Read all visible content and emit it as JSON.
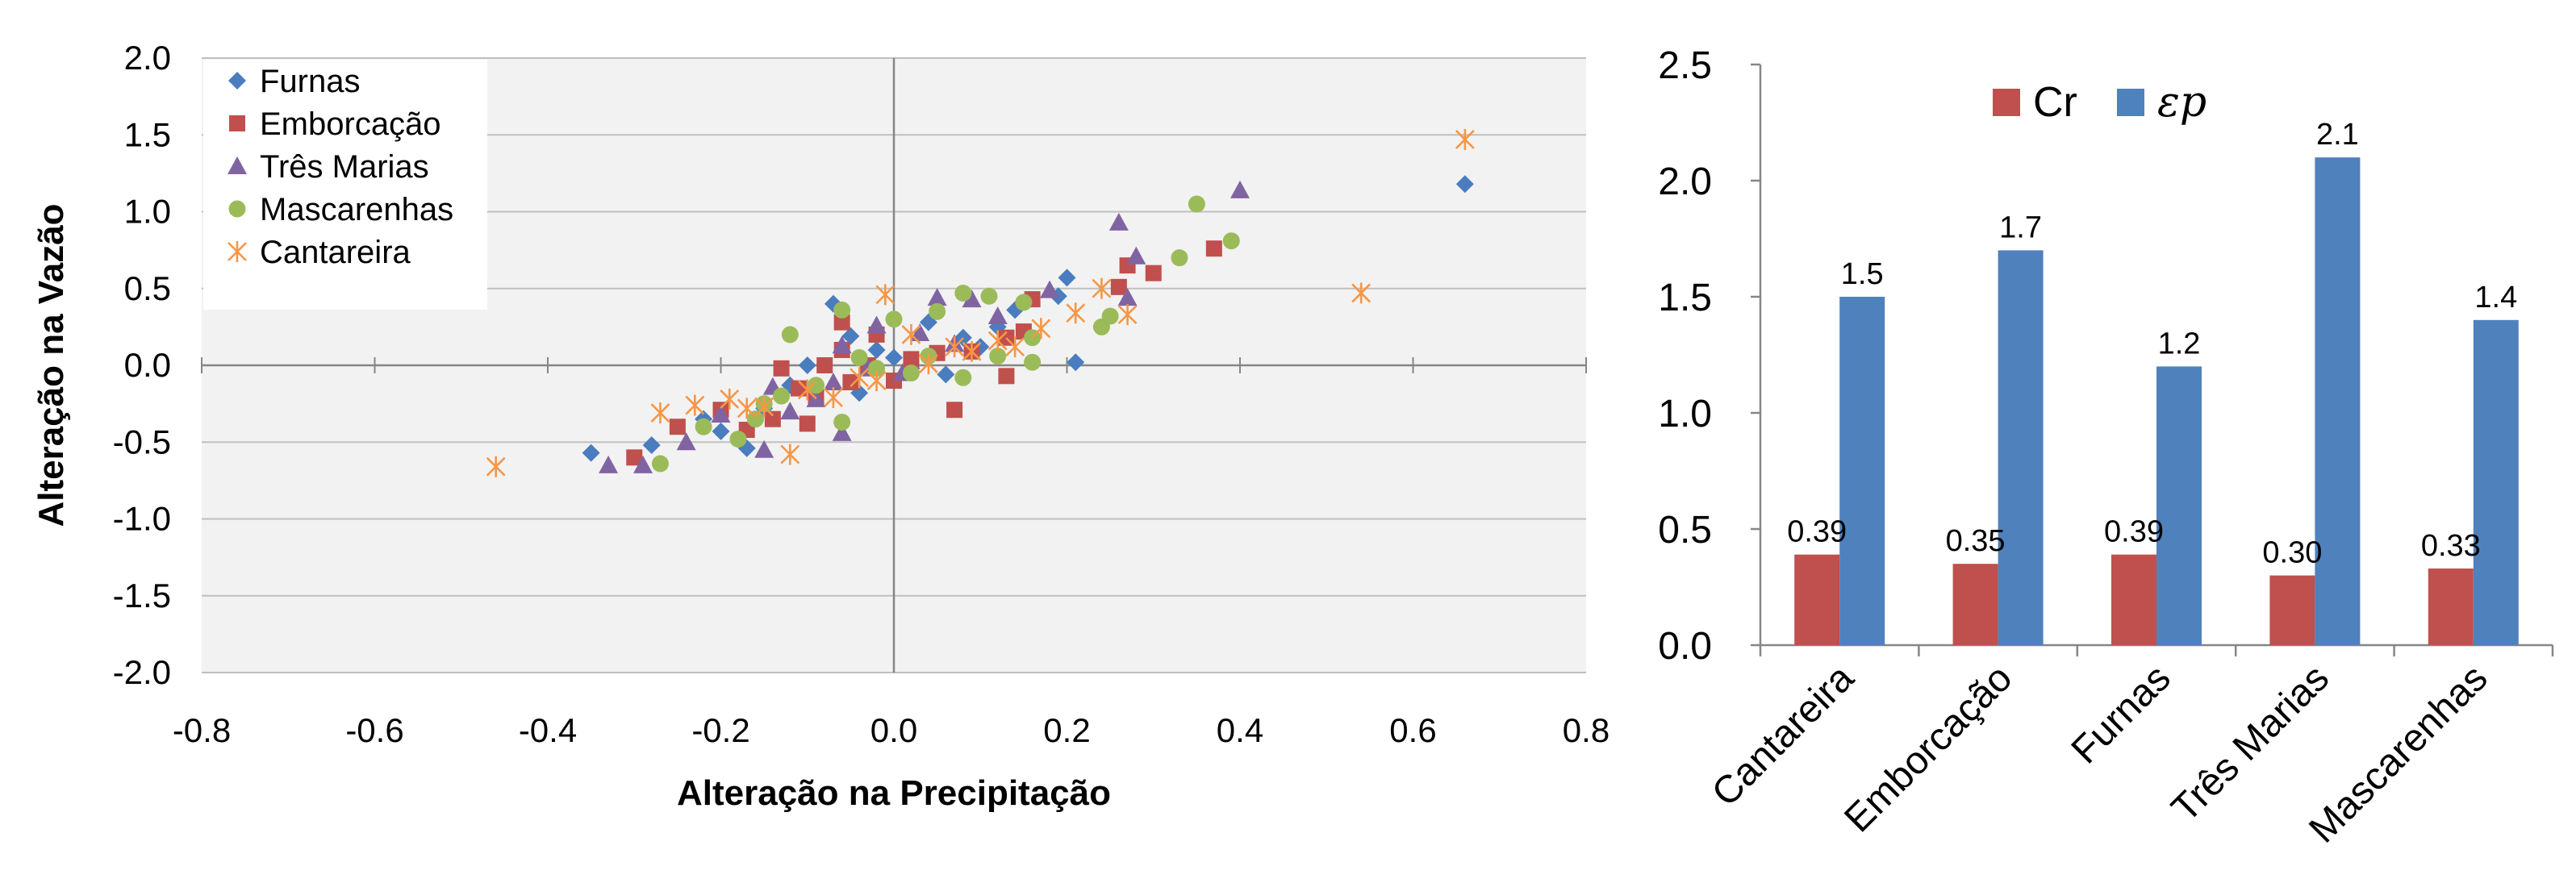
{
  "colors": {
    "Furnas": "#4a7dbf",
    "Emborcação": "#c0504d",
    "Três Marias": "#8064a2",
    "Mascarenhas": "#9bbb59",
    "Cantareira": "#f79646",
    "Cr": "#c0504d",
    "ep": "#4f81bd",
    "plot_bg": "#f2f2f2",
    "grid": "#bfbfbf"
  },
  "chart_data": [
    {
      "type": "scatter",
      "xlabel": "Alteração na Precipitação",
      "ylabel": "Alteração na Vazão",
      "xlim": [
        -0.8,
        0.8
      ],
      "ylim": [
        -2.0,
        2.0
      ],
      "x_ticks": [
        "-0.8",
        "-0.6",
        "-0.4",
        "-0.2",
        "0.0",
        "0.2",
        "0.4",
        "0.6",
        "0.8"
      ],
      "y_ticks": [
        "2.0",
        "1.5",
        "1.0",
        "0.5",
        "0.0",
        "-0.5",
        "-1.0",
        "-1.5",
        "-2.0"
      ],
      "grid": "horizontal",
      "legend_position": "top-left",
      "series": [
        {
          "name": "Furnas",
          "marker": "diamond",
          "points": [
            [
              0.66,
              1.18
            ],
            [
              0.2,
              0.57
            ],
            [
              0.21,
              0.02
            ],
            [
              0.19,
              0.45
            ],
            [
              0.14,
              0.36
            ],
            [
              0.1,
              0.12
            ],
            [
              0.04,
              0.28
            ],
            [
              -0.02,
              0.1
            ],
            [
              -0.05,
              0.19
            ],
            [
              -0.07,
              0.4
            ],
            [
              -0.1,
              0.0
            ],
            [
              -0.12,
              -0.13
            ],
            [
              -0.15,
              -0.28
            ],
            [
              -0.17,
              -0.54
            ],
            [
              -0.2,
              -0.43
            ],
            [
              -0.22,
              -0.35
            ],
            [
              -0.28,
              -0.52
            ],
            [
              -0.35,
              -0.57
            ],
            [
              0.06,
              -0.06
            ],
            [
              0.02,
              -0.02
            ],
            [
              0.08,
              0.18
            ],
            [
              0.12,
              0.25
            ],
            [
              -0.04,
              -0.18
            ],
            [
              0.0,
              0.05
            ]
          ]
        },
        {
          "name": "Emborcação",
          "marker": "square",
          "points": [
            [
              0.37,
              0.76
            ],
            [
              0.3,
              0.6
            ],
            [
              0.27,
              0.65
            ],
            [
              0.26,
              0.51
            ],
            [
              0.16,
              0.43
            ],
            [
              0.15,
              0.22
            ],
            [
              0.13,
              0.18
            ],
            [
              0.13,
              -0.07
            ],
            [
              0.07,
              -0.29
            ],
            [
              0.05,
              0.08
            ],
            [
              0.0,
              -0.1
            ],
            [
              -0.02,
              0.2
            ],
            [
              -0.03,
              0.0
            ],
            [
              -0.06,
              0.28
            ],
            [
              -0.06,
              0.1
            ],
            [
              -0.08,
              0.0
            ],
            [
              -0.09,
              -0.21
            ],
            [
              -0.11,
              -0.15
            ],
            [
              -0.13,
              -0.02
            ],
            [
              -0.14,
              -0.35
            ],
            [
              -0.17,
              -0.42
            ],
            [
              -0.2,
              -0.29
            ],
            [
              -0.25,
              -0.4
            ],
            [
              -0.3,
              -0.6
            ],
            [
              -0.1,
              -0.38
            ],
            [
              0.02,
              0.04
            ],
            [
              0.09,
              0.09
            ],
            [
              -0.05,
              -0.11
            ]
          ]
        },
        {
          "name": "Três Marias",
          "marker": "triangle",
          "points": [
            [
              0.4,
              1.14
            ],
            [
              0.26,
              0.93
            ],
            [
              0.28,
              0.71
            ],
            [
              0.27,
              0.44
            ],
            [
              0.18,
              0.49
            ],
            [
              0.12,
              0.32
            ],
            [
              0.09,
              0.43
            ],
            [
              0.05,
              0.44
            ],
            [
              0.03,
              0.21
            ],
            [
              -0.02,
              0.26
            ],
            [
              -0.06,
              0.13
            ],
            [
              -0.07,
              -0.11
            ],
            [
              -0.09,
              -0.22
            ],
            [
              -0.12,
              -0.3
            ],
            [
              -0.14,
              -0.14
            ],
            [
              -0.15,
              -0.55
            ],
            [
              -0.2,
              -0.32
            ],
            [
              -0.24,
              -0.5
            ],
            [
              -0.29,
              -0.65
            ],
            [
              -0.33,
              -0.65
            ],
            [
              -0.06,
              -0.44
            ],
            [
              0.01,
              -0.05
            ],
            [
              0.07,
              0.14
            ],
            [
              -0.03,
              -0.02
            ]
          ]
        },
        {
          "name": "Mascarenhas",
          "marker": "circle",
          "points": [
            [
              0.35,
              1.05
            ],
            [
              0.39,
              0.81
            ],
            [
              0.33,
              0.7
            ],
            [
              0.25,
              0.32
            ],
            [
              0.24,
              0.25
            ],
            [
              0.16,
              0.18
            ],
            [
              0.15,
              0.41
            ],
            [
              0.11,
              0.45
            ],
            [
              0.08,
              0.47
            ],
            [
              0.05,
              0.35
            ],
            [
              0.04,
              0.06
            ],
            [
              0.02,
              -0.05
            ],
            [
              0.0,
              0.3
            ],
            [
              -0.02,
              -0.02
            ],
            [
              -0.06,
              -0.37
            ],
            [
              -0.06,
              0.36
            ],
            [
              -0.09,
              -0.13
            ],
            [
              -0.12,
              0.2
            ],
            [
              -0.13,
              -0.2
            ],
            [
              -0.16,
              -0.35
            ],
            [
              -0.18,
              -0.48
            ],
            [
              -0.22,
              -0.4
            ],
            [
              -0.27,
              -0.64
            ],
            [
              -0.15,
              -0.25
            ],
            [
              0.16,
              0.02
            ],
            [
              0.08,
              -0.08
            ],
            [
              0.12,
              0.06
            ],
            [
              -0.04,
              0.05
            ]
          ]
        },
        {
          "name": "Cantareira",
          "marker": "asterisk",
          "points": [
            [
              0.66,
              1.47
            ],
            [
              0.54,
              0.47
            ],
            [
              0.27,
              0.33
            ],
            [
              0.24,
              0.5
            ],
            [
              0.21,
              0.34
            ],
            [
              0.17,
              0.24
            ],
            [
              0.12,
              0.16
            ],
            [
              0.09,
              0.09
            ],
            [
              0.07,
              0.12
            ],
            [
              0.04,
              0.01
            ],
            [
              -0.01,
              0.46
            ],
            [
              -0.04,
              -0.08
            ],
            [
              -0.07,
              -0.21
            ],
            [
              -0.1,
              -0.16
            ],
            [
              -0.12,
              -0.58
            ],
            [
              -0.15,
              -0.27
            ],
            [
              -0.17,
              -0.28
            ],
            [
              -0.19,
              -0.22
            ],
            [
              -0.23,
              -0.26
            ],
            [
              -0.27,
              -0.31
            ],
            [
              -0.46,
              -0.66
            ],
            [
              0.02,
              0.2
            ],
            [
              -0.02,
              -0.1
            ],
            [
              0.14,
              0.12
            ]
          ]
        }
      ]
    },
    {
      "type": "bar",
      "categories": [
        "Cantareira",
        "Emborcação",
        "Furnas",
        "Três Marias",
        "Mascarenhas"
      ],
      "ylim": [
        0.0,
        2.5
      ],
      "y_ticks": [
        "0.0",
        "0.5",
        "1.0",
        "1.5",
        "2.0",
        "2.5"
      ],
      "legend_position": "top-center",
      "series": [
        {
          "name": "Cr",
          "values": [
            0.39,
            0.35,
            0.39,
            0.3,
            0.33
          ],
          "labels": [
            "0.39",
            "0.35",
            "0.39",
            "0.30",
            "0.33"
          ]
        },
        {
          "name": "εp",
          "values": [
            1.5,
            1.7,
            1.2,
            2.1,
            1.4
          ],
          "labels": [
            "1.5",
            "1.7",
            "1.2",
            "2.1",
            "1.4"
          ]
        }
      ]
    }
  ]
}
